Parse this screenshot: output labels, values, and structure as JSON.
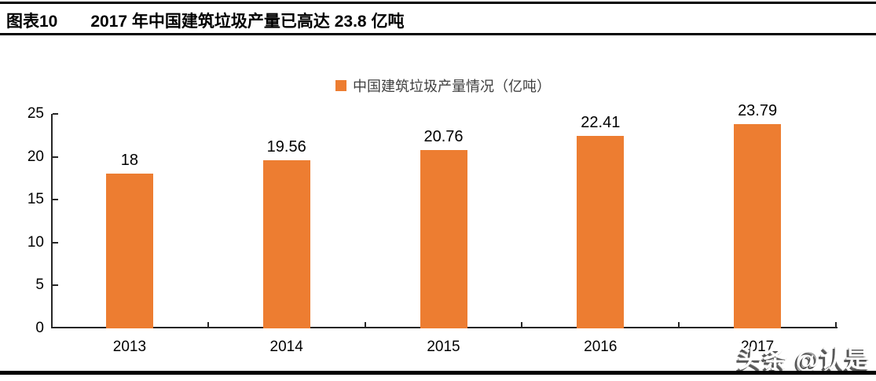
{
  "header": {
    "label": "图表10",
    "title": "2017 年中国建筑垃圾产量已高达 23.8 亿吨"
  },
  "legend": {
    "label": "中国建筑垃圾产量情况（亿吨）",
    "marker_color": "#ED7D31"
  },
  "chart_data": {
    "type": "bar",
    "title": "",
    "xlabel": "",
    "ylabel": "",
    "categories": [
      "2013",
      "2014",
      "2015",
      "2016",
      "2017"
    ],
    "values": [
      18,
      19.56,
      20.76,
      22.41,
      23.79
    ],
    "value_labels": [
      "18",
      "19.56",
      "20.76",
      "22.41",
      "23.79"
    ],
    "series_name": "中国建筑垃圾产量情况（亿吨）",
    "ylim": [
      0,
      25
    ],
    "yticks": [
      0,
      5,
      10,
      15,
      20,
      25
    ],
    "grid": false,
    "legend_position": "top",
    "bar_color": "#ED7D31",
    "axis_color": "#262626"
  },
  "watermark": {
    "text": "头条 @认是"
  }
}
